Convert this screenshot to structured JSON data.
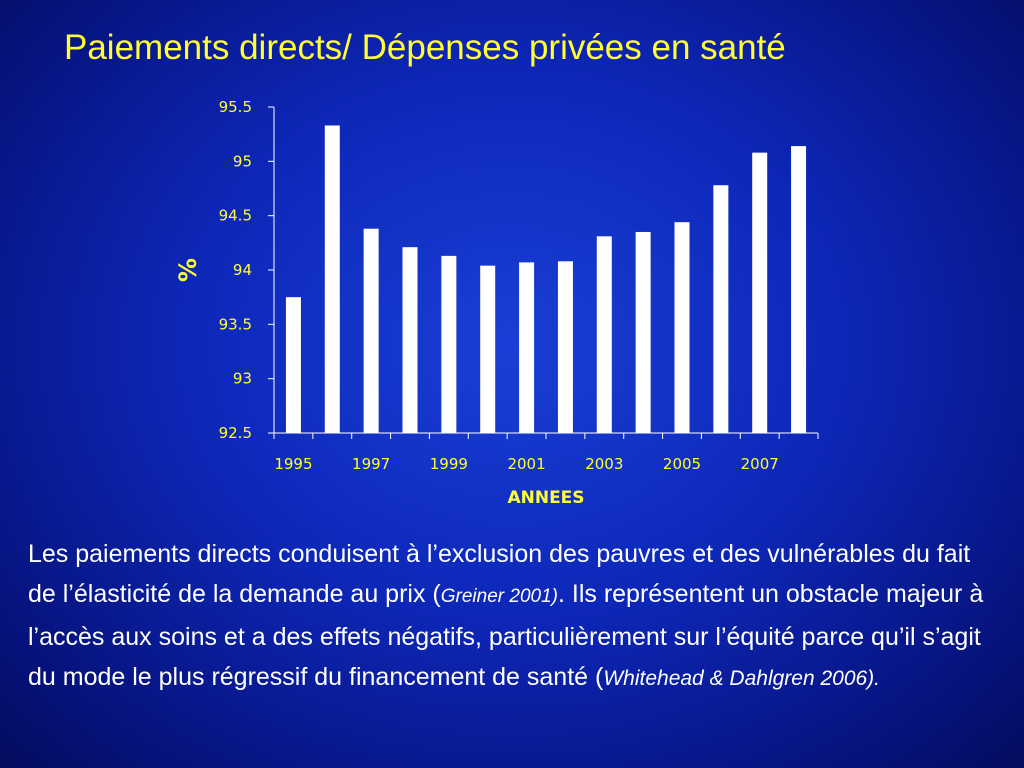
{
  "slide": {
    "title": "Paiements directs/ Dépenses privées en santé",
    "body": {
      "part1": "Les paiements directs  conduisent à l’exclusion des pauvres et des vulnérables du fait de l’élasticité de la demande au prix ",
      "cite1_open": "(",
      "cite1": "Greiner 2001)",
      "part2": ". Ils représentent un obstacle majeur à l’accès aux soins et a des effets négatifs, particulièrement sur l’équité parce qu’il s’agit du mode le plus régressif du financement de santé ",
      "cite2_open": "(",
      "cite2": "Whitehead & Dahlgren 2006)."
    }
  },
  "colors": {
    "accent": "#ffff33",
    "bar": "#ffffff",
    "axis": "#ffffff",
    "background": "#0d27b8"
  },
  "chart_data": {
    "type": "bar",
    "categories": [
      "1995",
      "1996",
      "1997",
      "1998",
      "1999",
      "2000",
      "2001",
      "2002",
      "2003",
      "2004",
      "2005",
      "2006",
      "2007",
      "2008"
    ],
    "x_tick_labels": [
      "1995",
      "",
      "1997",
      "",
      "1999",
      "",
      "2001",
      "",
      "2003",
      "",
      "2005",
      "",
      "2007",
      ""
    ],
    "values": [
      93.75,
      95.33,
      94.38,
      94.21,
      94.13,
      94.04,
      94.07,
      94.08,
      94.31,
      94.35,
      94.44,
      94.78,
      95.08,
      95.14
    ],
    "ylim": [
      92.5,
      95.5
    ],
    "y_ticks": [
      "92.5",
      "93",
      "93.5",
      "94",
      "94.5",
      "95",
      "95.5"
    ],
    "xlabel": "ANNEES",
    "ylabel": "%",
    "grid": false
  }
}
